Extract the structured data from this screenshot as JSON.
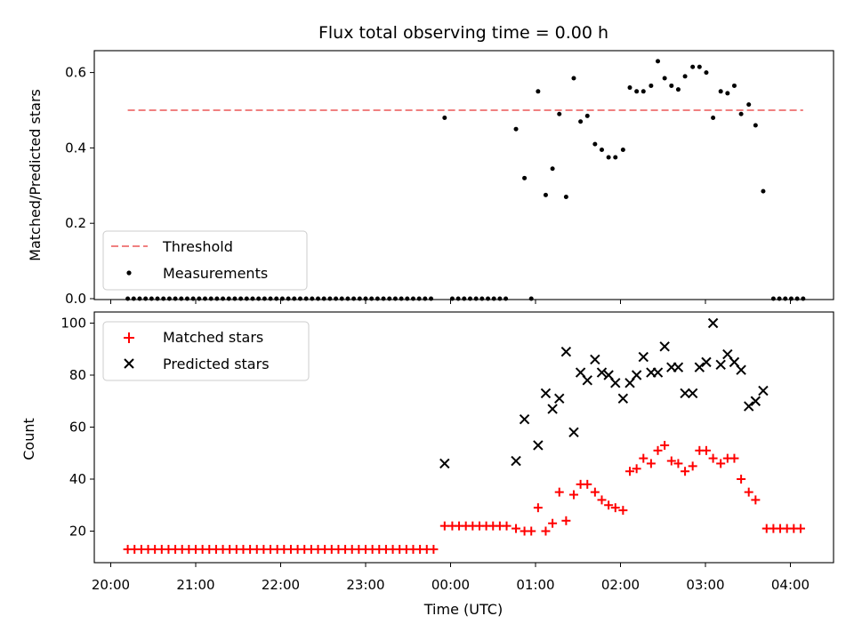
{
  "chart_data": [
    {
      "type": "scatter",
      "title": "Flux total observing time = 0.00 h",
      "xlabel": "",
      "ylabel": "Matched/Predicted stars",
      "ylim": [
        0,
        0.66
      ],
      "yticks": [
        "0.0",
        "0.2",
        "0.4",
        "0.6"
      ],
      "grid": false,
      "legend_position": "lower-left",
      "threshold": {
        "name": "Threshold",
        "value": 0.5,
        "x_start": 20.2,
        "x_end": 4.15,
        "color": "#f08080"
      },
      "measurements_name": "Measurements",
      "measurements": [
        [
          20.2,
          0
        ],
        [
          20.27,
          0
        ],
        [
          20.34,
          0
        ],
        [
          20.41,
          0
        ],
        [
          20.48,
          0
        ],
        [
          20.55,
          0
        ],
        [
          20.62,
          0
        ],
        [
          20.69,
          0
        ],
        [
          20.76,
          0
        ],
        [
          20.83,
          0
        ],
        [
          20.9,
          0
        ],
        [
          20.97,
          0
        ],
        [
          21.04,
          0
        ],
        [
          21.11,
          0
        ],
        [
          21.18,
          0
        ],
        [
          21.25,
          0
        ],
        [
          21.32,
          0
        ],
        [
          21.39,
          0
        ],
        [
          21.46,
          0
        ],
        [
          21.53,
          0
        ],
        [
          21.6,
          0
        ],
        [
          21.67,
          0
        ],
        [
          21.74,
          0
        ],
        [
          21.81,
          0
        ],
        [
          21.88,
          0
        ],
        [
          21.95,
          0
        ],
        [
          22.02,
          0
        ],
        [
          22.09,
          0
        ],
        [
          22.16,
          0
        ],
        [
          22.23,
          0
        ],
        [
          22.3,
          0
        ],
        [
          22.37,
          0
        ],
        [
          22.44,
          0
        ],
        [
          22.51,
          0
        ],
        [
          22.58,
          0
        ],
        [
          22.65,
          0
        ],
        [
          22.72,
          0
        ],
        [
          22.79,
          0
        ],
        [
          22.86,
          0
        ],
        [
          22.93,
          0
        ],
        [
          23.0,
          0
        ],
        [
          23.07,
          0
        ],
        [
          23.14,
          0
        ],
        [
          23.21,
          0
        ],
        [
          23.28,
          0
        ],
        [
          23.35,
          0
        ],
        [
          23.42,
          0
        ],
        [
          23.49,
          0
        ],
        [
          23.56,
          0
        ],
        [
          23.63,
          0
        ],
        [
          23.7,
          0
        ],
        [
          23.77,
          0
        ],
        [
          23.93,
          0.48
        ],
        [
          0.02,
          0
        ],
        [
          0.09,
          0
        ],
        [
          0.16,
          0
        ],
        [
          0.23,
          0
        ],
        [
          0.3,
          0
        ],
        [
          0.37,
          0
        ],
        [
          0.44,
          0
        ],
        [
          0.51,
          0
        ],
        [
          0.58,
          0
        ],
        [
          0.65,
          0
        ],
        [
          0.77,
          0.45
        ],
        [
          0.87,
          0.32
        ],
        [
          0.95,
          0
        ],
        [
          1.03,
          0.55
        ],
        [
          1.12,
          0.275
        ],
        [
          1.2,
          0.345
        ],
        [
          1.28,
          0.49
        ],
        [
          1.36,
          0.27
        ],
        [
          1.45,
          0.585
        ],
        [
          1.53,
          0.47
        ],
        [
          1.61,
          0.485
        ],
        [
          1.7,
          0.41
        ],
        [
          1.78,
          0.395
        ],
        [
          1.86,
          0.375
        ],
        [
          1.94,
          0.375
        ],
        [
          2.03,
          0.395
        ],
        [
          2.11,
          0.56
        ],
        [
          2.19,
          0.55
        ],
        [
          2.27,
          0.55
        ],
        [
          2.36,
          0.565
        ],
        [
          2.44,
          0.63
        ],
        [
          2.52,
          0.585
        ],
        [
          2.6,
          0.565
        ],
        [
          2.68,
          0.555
        ],
        [
          2.76,
          0.59
        ],
        [
          2.85,
          0.615
        ],
        [
          2.93,
          0.615
        ],
        [
          3.01,
          0.6
        ],
        [
          3.09,
          0.48
        ],
        [
          3.18,
          0.55
        ],
        [
          3.26,
          0.545
        ],
        [
          3.34,
          0.565
        ],
        [
          3.42,
          0.49
        ],
        [
          3.51,
          0.515
        ],
        [
          3.59,
          0.46
        ],
        [
          3.68,
          0.285
        ],
        [
          3.8,
          0
        ],
        [
          3.87,
          0
        ],
        [
          3.94,
          0
        ],
        [
          4.01,
          0
        ],
        [
          4.08,
          0
        ],
        [
          4.15,
          0
        ]
      ]
    },
    {
      "type": "scatter",
      "title": "",
      "xlabel": "Time (UTC)",
      "ylabel": "Count",
      "ylim": [
        9,
        105
      ],
      "yticks": [
        "20",
        "40",
        "60",
        "80",
        "100"
      ],
      "xticks": [
        "20:00",
        "21:00",
        "22:00",
        "23:00",
        "00:00",
        "01:00",
        "02:00",
        "03:00",
        "04:00"
      ],
      "grid": false,
      "legend_position": "upper-left",
      "series": [
        {
          "name": "Matched stars",
          "marker": "+",
          "color": "#ff0000",
          "points": [
            [
              20.2,
              13
            ],
            [
              20.28,
              13
            ],
            [
              20.36,
              13
            ],
            [
              20.44,
              13
            ],
            [
              20.52,
              13
            ],
            [
              20.6,
              13
            ],
            [
              20.68,
              13
            ],
            [
              20.76,
              13
            ],
            [
              20.84,
              13
            ],
            [
              20.92,
              13
            ],
            [
              21.0,
              13
            ],
            [
              21.08,
              13
            ],
            [
              21.16,
              13
            ],
            [
              21.24,
              13
            ],
            [
              21.32,
              13
            ],
            [
              21.4,
              13
            ],
            [
              21.48,
              13
            ],
            [
              21.56,
              13
            ],
            [
              21.64,
              13
            ],
            [
              21.72,
              13
            ],
            [
              21.8,
              13
            ],
            [
              21.88,
              13
            ],
            [
              21.96,
              13
            ],
            [
              22.04,
              13
            ],
            [
              22.12,
              13
            ],
            [
              22.2,
              13
            ],
            [
              22.28,
              13
            ],
            [
              22.36,
              13
            ],
            [
              22.44,
              13
            ],
            [
              22.52,
              13
            ],
            [
              22.6,
              13
            ],
            [
              22.68,
              13
            ],
            [
              22.76,
              13
            ],
            [
              22.84,
              13
            ],
            [
              22.92,
              13
            ],
            [
              23.0,
              13
            ],
            [
              23.08,
              13
            ],
            [
              23.16,
              13
            ],
            [
              23.24,
              13
            ],
            [
              23.32,
              13
            ],
            [
              23.4,
              13
            ],
            [
              23.48,
              13
            ],
            [
              23.56,
              13
            ],
            [
              23.64,
              13
            ],
            [
              23.72,
              13
            ],
            [
              23.8,
              13
            ],
            [
              23.93,
              22
            ],
            [
              0.02,
              22
            ],
            [
              0.1,
              22
            ],
            [
              0.18,
              22
            ],
            [
              0.26,
              22
            ],
            [
              0.34,
              22
            ],
            [
              0.42,
              22
            ],
            [
              0.5,
              22
            ],
            [
              0.58,
              22
            ],
            [
              0.66,
              22
            ],
            [
              0.77,
              21
            ],
            [
              0.87,
              20
            ],
            [
              0.95,
              20
            ],
            [
              1.03,
              29
            ],
            [
              1.12,
              20
            ],
            [
              1.2,
              23
            ],
            [
              1.28,
              35
            ],
            [
              1.36,
              24
            ],
            [
              1.45,
              34
            ],
            [
              1.53,
              38
            ],
            [
              1.61,
              38
            ],
            [
              1.7,
              35
            ],
            [
              1.78,
              32
            ],
            [
              1.86,
              30
            ],
            [
              1.94,
              29
            ],
            [
              2.03,
              28
            ],
            [
              2.11,
              43
            ],
            [
              2.19,
              44
            ],
            [
              2.27,
              48
            ],
            [
              2.36,
              46
            ],
            [
              2.44,
              51
            ],
            [
              2.52,
              53
            ],
            [
              2.6,
              47
            ],
            [
              2.68,
              46
            ],
            [
              2.76,
              43
            ],
            [
              2.85,
              45
            ],
            [
              2.93,
              51
            ],
            [
              3.01,
              51
            ],
            [
              3.09,
              48
            ],
            [
              3.18,
              46
            ],
            [
              3.26,
              48
            ],
            [
              3.34,
              48
            ],
            [
              3.42,
              40
            ],
            [
              3.51,
              35
            ],
            [
              3.59,
              32
            ],
            [
              3.72,
              21
            ],
            [
              3.8,
              21
            ],
            [
              3.88,
              21
            ],
            [
              3.96,
              21
            ],
            [
              4.04,
              21
            ],
            [
              4.12,
              21
            ]
          ]
        },
        {
          "name": "Predicted stars",
          "marker": "x",
          "color": "#000000",
          "points": [
            [
              23.93,
              46
            ],
            [
              0.77,
              47
            ],
            [
              0.87,
              63
            ],
            [
              1.03,
              53
            ],
            [
              1.12,
              73
            ],
            [
              1.2,
              67
            ],
            [
              1.28,
              71
            ],
            [
              1.36,
              89
            ],
            [
              1.45,
              58
            ],
            [
              1.53,
              81
            ],
            [
              1.61,
              78
            ],
            [
              1.7,
              86
            ],
            [
              1.78,
              81
            ],
            [
              1.86,
              80
            ],
            [
              1.94,
              77
            ],
            [
              2.03,
              71
            ],
            [
              2.11,
              77
            ],
            [
              2.19,
              80
            ],
            [
              2.27,
              87
            ],
            [
              2.36,
              81
            ],
            [
              2.44,
              81
            ],
            [
              2.52,
              91
            ],
            [
              2.6,
              83
            ],
            [
              2.68,
              83
            ],
            [
              2.76,
              73
            ],
            [
              2.85,
              73
            ],
            [
              2.93,
              83
            ],
            [
              3.01,
              85
            ],
            [
              3.09,
              100
            ],
            [
              3.18,
              84
            ],
            [
              3.26,
              88
            ],
            [
              3.34,
              85
            ],
            [
              3.42,
              82
            ],
            [
              3.51,
              68
            ],
            [
              3.59,
              70
            ],
            [
              3.68,
              74
            ]
          ]
        }
      ]
    }
  ]
}
